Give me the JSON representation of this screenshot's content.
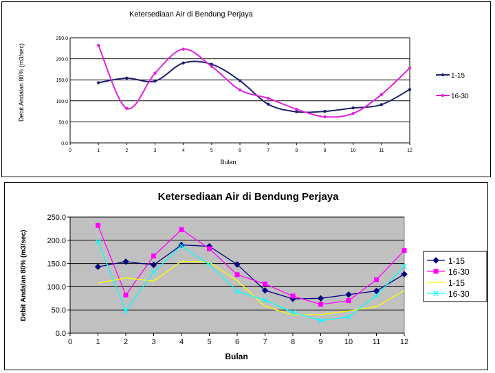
{
  "chart_data": [
    {
      "type": "line",
      "title": "Ketersediaan Air di Bendung Perjaya",
      "xlabel": "Bulan",
      "ylabel": "Debit Andalan 80% (m3/sec)",
      "x": [
        1,
        2,
        3,
        4,
        5,
        6,
        7,
        8,
        9,
        10,
        11,
        12
      ],
      "x_ticks": [
        "0",
        "1",
        "2",
        "3",
        "4",
        "5",
        "6",
        "7",
        "8",
        "9",
        "10",
        "11",
        "12"
      ],
      "y_ticks": [
        "0.0",
        "50.0",
        "100.0",
        "150.0",
        "200.0",
        "250.0"
      ],
      "xlim": [
        0,
        12
      ],
      "ylim": [
        0,
        250
      ],
      "grid": true,
      "legend": "right",
      "smooth": true,
      "series": [
        {
          "name": "1-15",
          "color": "#1f1f6e",
          "values": [
            143,
            154,
            147,
            190,
            187,
            148,
            92,
            74,
            75,
            83,
            91,
            127
          ]
        },
        {
          "name": "16-30",
          "color": "#e020e0",
          "values": [
            232,
            82,
            166,
            223,
            182,
            126,
            106,
            80,
            62,
            70,
            115,
            178
          ]
        }
      ]
    },
    {
      "type": "line",
      "title": "Ketersediaan Air di Bendung Perjaya",
      "xlabel": "Bulan",
      "ylabel": "Debit Andalan 80% (m3/sec)",
      "x": [
        1,
        2,
        3,
        4,
        5,
        6,
        7,
        8,
        9,
        10,
        11,
        12
      ],
      "x_ticks": [
        "0",
        "1",
        "2",
        "3",
        "4",
        "5",
        "6",
        "7",
        "8",
        "9",
        "10",
        "11",
        "12"
      ],
      "y_ticks": [
        "0.0",
        "50.0",
        "100.0",
        "150.0",
        "200.0",
        "250.0"
      ],
      "xlim": [
        0,
        12
      ],
      "ylim": [
        0,
        250
      ],
      "grid": true,
      "legend": "right",
      "plot_background": "#c0c0c0",
      "series": [
        {
          "name": "1-15",
          "color": "#000080",
          "marker": "diamond",
          "values": [
            143,
            154,
            147,
            190,
            187,
            148,
            92,
            74,
            75,
            83,
            91,
            127
          ]
        },
        {
          "name": "16-30",
          "color": "#ff00ff",
          "marker": "square",
          "values": [
            232,
            82,
            166,
            223,
            182,
            126,
            106,
            80,
            62,
            70,
            115,
            178
          ]
        },
        {
          "name": "1-15",
          "color": "#ffff00",
          "marker": "none",
          "values": [
            108,
            119,
            112,
            155,
            153,
            113,
            58,
            39,
            40,
            48,
            57,
            92
          ]
        },
        {
          "name": "16-30",
          "color": "#00ffff",
          "marker": "x",
          "values": [
            197,
            48,
            132,
            188,
            148,
            90,
            71,
            45,
            27,
            35,
            81,
            144
          ]
        }
      ]
    }
  ]
}
